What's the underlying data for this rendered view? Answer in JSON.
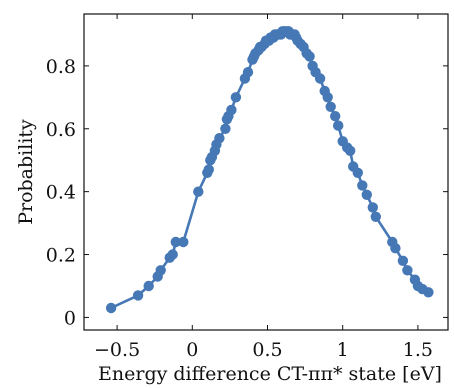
{
  "chart_data": {
    "type": "line",
    "title": "",
    "xlabel": "Energy difference CT-ππ* state [eV]",
    "ylabel": "Probability",
    "xlim": [
      -0.72,
      1.7
    ],
    "ylim": [
      -0.04,
      0.965
    ],
    "x_ticks": [
      -0.5,
      0,
      0.5,
      1,
      1.5
    ],
    "x_tick_labels": [
      "−0.5",
      "0",
      "0.5",
      "1",
      "1.5"
    ],
    "y_ticks": [
      0,
      0.2,
      0.4,
      0.6,
      0.8
    ],
    "y_tick_labels": [
      "0",
      "0.2",
      "0.4",
      "0.6",
      "0.8"
    ],
    "grid": false,
    "legend": "none",
    "series": [
      {
        "color": "#4678b6",
        "marker": "circle",
        "x": [
          -0.54,
          -0.36,
          -0.29,
          -0.23,
          -0.21,
          -0.15,
          -0.13,
          -0.11,
          -0.06,
          0.04,
          0.1,
          0.11,
          0.12,
          0.13,
          0.15,
          0.16,
          0.18,
          0.22,
          0.23,
          0.24,
          0.26,
          0.29,
          0.35,
          0.37,
          0.4,
          0.41,
          0.42,
          0.44,
          0.45,
          0.46,
          0.48,
          0.49,
          0.5,
          0.51,
          0.52,
          0.53,
          0.54,
          0.55,
          0.56,
          0.57,
          0.58,
          0.59,
          0.6,
          0.61,
          0.62,
          0.63,
          0.64,
          0.65,
          0.66,
          0.67,
          0.68,
          0.69,
          0.7,
          0.72,
          0.74,
          0.76,
          0.78,
          0.8,
          0.82,
          0.85,
          0.88,
          0.9,
          0.92,
          0.95,
          0.97,
          1.0,
          1.03,
          1.05,
          1.07,
          1.1,
          1.13,
          1.16,
          1.2,
          1.22,
          1.33,
          1.35,
          1.4,
          1.43,
          1.48,
          1.5,
          1.53,
          1.57
        ],
        "y": [
          0.03,
          0.07,
          0.1,
          0.13,
          0.15,
          0.19,
          0.2,
          0.24,
          0.24,
          0.4,
          0.46,
          0.47,
          0.5,
          0.51,
          0.53,
          0.55,
          0.57,
          0.6,
          0.63,
          0.64,
          0.66,
          0.7,
          0.76,
          0.78,
          0.82,
          0.83,
          0.84,
          0.85,
          0.86,
          0.86,
          0.87,
          0.88,
          0.88,
          0.88,
          0.89,
          0.89,
          0.89,
          0.9,
          0.9,
          0.9,
          0.9,
          0.9,
          0.91,
          0.91,
          0.91,
          0.91,
          0.91,
          0.9,
          0.9,
          0.9,
          0.9,
          0.89,
          0.88,
          0.87,
          0.86,
          0.84,
          0.83,
          0.8,
          0.78,
          0.76,
          0.72,
          0.7,
          0.67,
          0.64,
          0.61,
          0.56,
          0.54,
          0.53,
          0.48,
          0.46,
          0.42,
          0.39,
          0.35,
          0.32,
          0.24,
          0.22,
          0.18,
          0.15,
          0.12,
          0.1,
          0.09,
          0.08
        ]
      }
    ]
  }
}
